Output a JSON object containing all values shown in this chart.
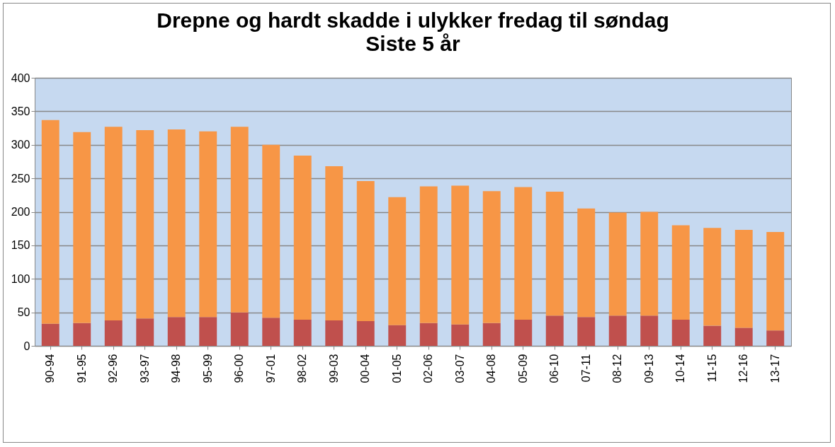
{
  "chart_data": {
    "type": "bar",
    "title": "Drepne og hardt skadde i ulykker fredag til søndag",
    "subtitle": "Siste 5 år",
    "categories": [
      "90-94",
      "91-95",
      "92-96",
      "93-97",
      "94-98",
      "95-99",
      "96-00",
      "97-01",
      "98-02",
      "99-03",
      "00-04",
      "01-05",
      "02-06",
      "03-07",
      "04-08",
      "05-09",
      "06-10",
      "07-11",
      "08-12",
      "09-13",
      "10-14",
      "11-15",
      "12-16",
      "13-17"
    ],
    "stacked": true,
    "series": [
      {
        "color": "#c0504d",
        "values": [
          33,
          34,
          38,
          41,
          43,
          43,
          50,
          42,
          39,
          38,
          37,
          31,
          34,
          32,
          34,
          39,
          45,
          43,
          45,
          45,
          39,
          30,
          27,
          23
        ]
      },
      {
        "color": "#f79646",
        "values": [
          304,
          285,
          289,
          281,
          280,
          277,
          277,
          258,
          245,
          230,
          209,
          191,
          204,
          207,
          197,
          198,
          185,
          162,
          154,
          155,
          141,
          146,
          146,
          147
        ]
      }
    ],
    "ylim": [
      0,
      400
    ],
    "yticks": [
      0,
      50,
      100,
      150,
      200,
      250,
      300,
      350,
      400
    ],
    "grid": "y",
    "legend": false
  }
}
